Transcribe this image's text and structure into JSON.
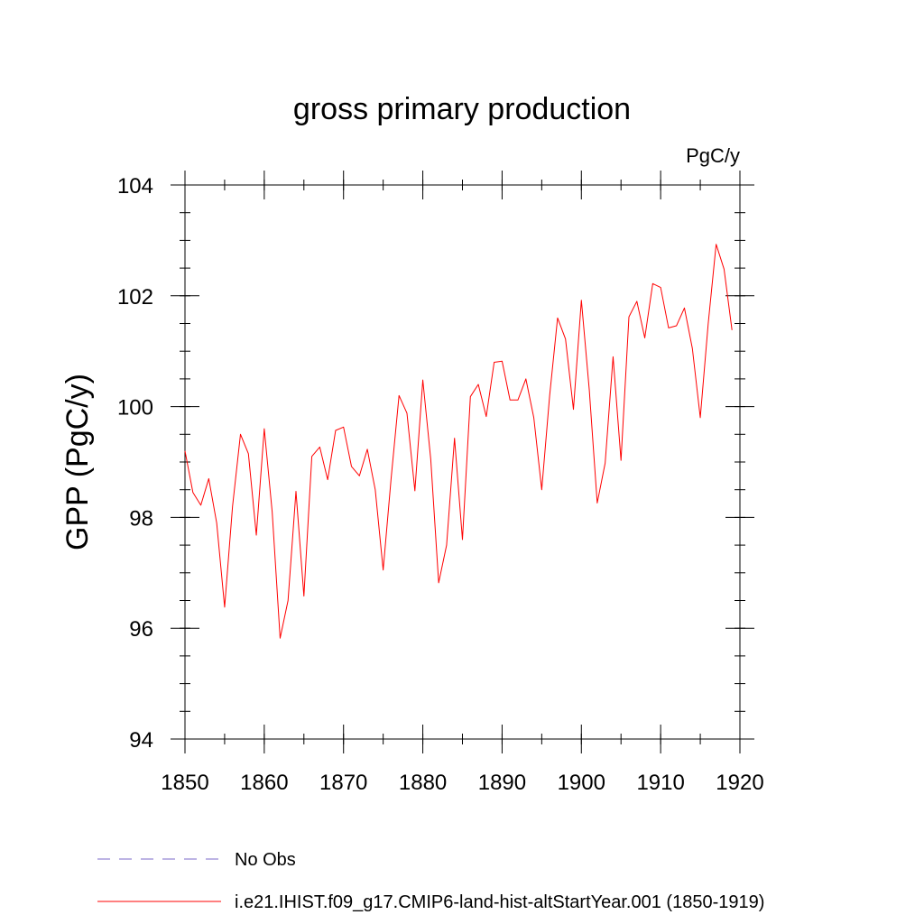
{
  "chart_data": {
    "type": "line",
    "title": "gross primary production",
    "units_label": "PgC/y",
    "ylabel": "GPP  (PgC/y)",
    "xlabel": "",
    "xlim": [
      1850,
      1920
    ],
    "ylim": [
      94,
      104
    ],
    "x_ticks": [
      1850,
      1860,
      1870,
      1880,
      1890,
      1900,
      1910,
      1920
    ],
    "y_ticks": [
      94,
      96,
      98,
      100,
      102,
      104
    ],
    "grid": false,
    "legend_position": "bottom",
    "legend": [
      {
        "name": "No Obs",
        "color": "#7b68c8",
        "style": "dashed"
      },
      {
        "name": "i.e21.IHIST.f09_g17.CMIP6-land-hist-altStartYear.001 (1850-1919)",
        "color": "#ff0000",
        "style": "solid"
      }
    ],
    "series": [
      {
        "name": "i.e21.IHIST.f09_g17.CMIP6-land-hist-altStartYear.001 (1850-1919)",
        "color": "#ff0000",
        "x": [
          1850,
          1851,
          1852,
          1853,
          1854,
          1855,
          1856,
          1857,
          1858,
          1859,
          1860,
          1861,
          1862,
          1863,
          1864,
          1865,
          1866,
          1867,
          1868,
          1869,
          1870,
          1871,
          1872,
          1873,
          1874,
          1875,
          1876,
          1877,
          1878,
          1879,
          1880,
          1881,
          1882,
          1883,
          1884,
          1885,
          1886,
          1887,
          1888,
          1889,
          1890,
          1891,
          1892,
          1893,
          1894,
          1895,
          1896,
          1897,
          1898,
          1899,
          1900,
          1901,
          1902,
          1903,
          1904,
          1905,
          1906,
          1907,
          1908,
          1909,
          1910,
          1911,
          1912,
          1913,
          1914,
          1915,
          1916,
          1917,
          1918,
          1919
        ],
        "values": [
          99.2,
          98.45,
          98.22,
          98.7,
          97.9,
          96.38,
          98.2,
          99.5,
          99.15,
          97.68,
          99.6,
          98.1,
          95.82,
          96.5,
          98.47,
          96.58,
          99.1,
          99.27,
          98.68,
          99.57,
          99.63,
          98.92,
          98.75,
          99.23,
          98.5,
          97.05,
          98.7,
          100.2,
          99.88,
          98.48,
          100.48,
          99.05,
          96.82,
          97.5,
          99.43,
          97.6,
          100.18,
          100.4,
          99.82,
          100.8,
          100.82,
          100.12,
          100.12,
          100.5,
          99.8,
          98.5,
          100.2,
          101.6,
          101.22,
          99.95,
          101.92,
          100.3,
          98.26,
          98.98,
          100.9,
          99.03,
          101.62,
          101.9,
          101.24,
          102.22,
          102.15,
          101.42,
          101.46,
          101.78,
          101.05,
          99.8,
          101.5,
          102.93,
          102.48,
          101.38
        ]
      }
    ]
  }
}
